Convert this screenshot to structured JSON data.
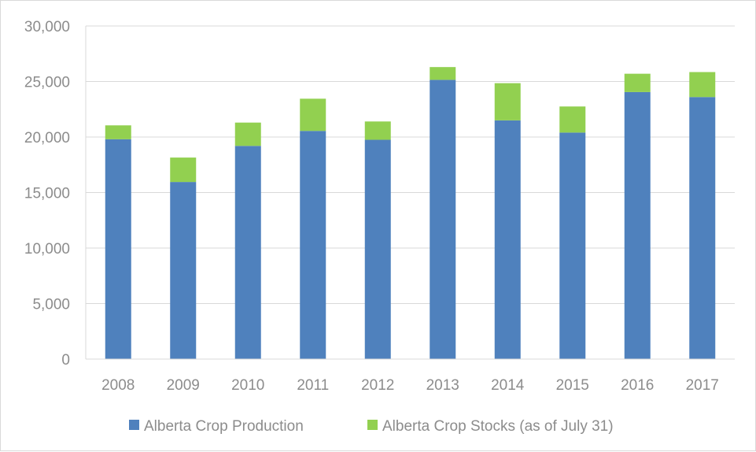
{
  "chart_data": {
    "type": "bar",
    "stacked": true,
    "title": "",
    "xlabel": "",
    "ylabel": "",
    "categories": [
      "2008",
      "2009",
      "2010",
      "2011",
      "2012",
      "2013",
      "2014",
      "2015",
      "2016",
      "2017"
    ],
    "series": [
      {
        "name": "Alberta Crop Production",
        "color": "#4f81bd",
        "values": [
          19800,
          15950,
          19200,
          20550,
          19750,
          25150,
          21500,
          20400,
          24050,
          23600
        ]
      },
      {
        "name": "Alberta Crop Stocks (as of July 31)",
        "color": "#92d050",
        "values": [
          1250,
          2200,
          2100,
          2900,
          1650,
          1150,
          3350,
          2350,
          1650,
          2250
        ]
      }
    ],
    "ylim": [
      0,
      30000
    ],
    "yticks": [
      0,
      5000,
      10000,
      15000,
      20000,
      25000,
      30000
    ],
    "ytick_labels": [
      "0",
      "5,000",
      "10,000",
      "15,000",
      "20,000",
      "25,000",
      "30,000"
    ],
    "grid": true,
    "legend": "bottom"
  }
}
